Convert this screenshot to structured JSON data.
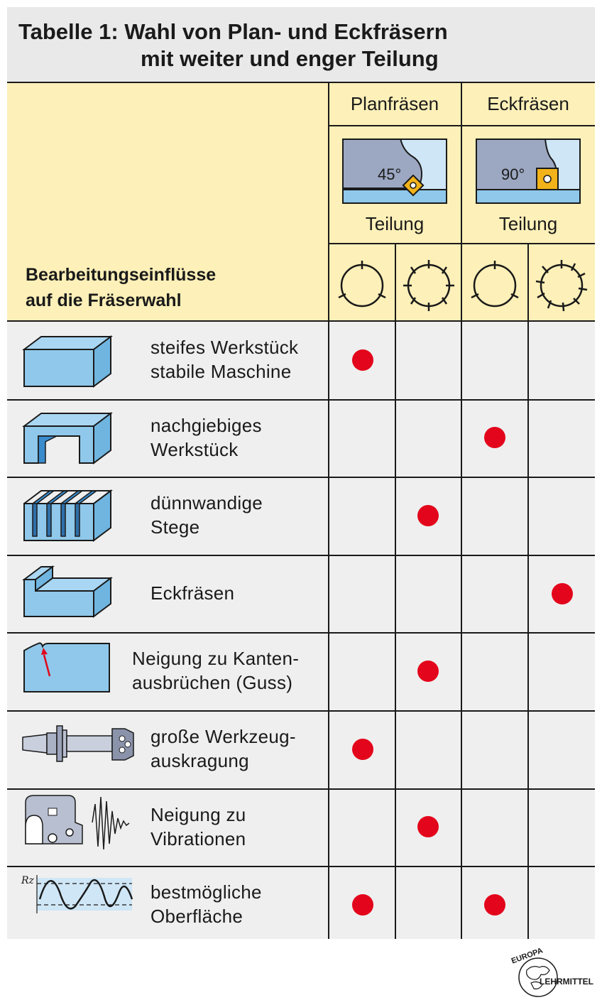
{
  "title": {
    "line1": "Tabelle 1:  Wahl von Plan- und Eckfräsern",
    "line2": "mit weiter und enger Teilung"
  },
  "header": {
    "left_line1": "Bearbeitungseinflüsse",
    "left_line2": "auf die Fräserwahl",
    "groups": [
      {
        "label": "Planfräsen",
        "angle": "45°",
        "teilung": "Teilung"
      },
      {
        "label": "Eckfräsen",
        "angle": "90°",
        "teilung": "Teilung"
      }
    ],
    "pitch_icons": [
      "wide-pitch-icon",
      "close-pitch-icon",
      "wide-pitch-icon",
      "close-pitch-icon"
    ]
  },
  "rows": [
    {
      "line1": "steifes Werkstück",
      "line2": "stabile Maschine",
      "icon": "rigid-block-icon",
      "marks": [
        true,
        false,
        false,
        false
      ]
    },
    {
      "line1": "nachgiebiges",
      "line2": "Werkstück",
      "icon": "flexible-workpiece-icon",
      "marks": [
        false,
        false,
        true,
        false
      ]
    },
    {
      "line1": "dünnwandige",
      "line2": "Stege",
      "icon": "thin-walls-icon",
      "marks": [
        false,
        true,
        false,
        false
      ]
    },
    {
      "line1": "Eckfräsen",
      "line2": "",
      "icon": "shoulder-icon",
      "marks": [
        false,
        false,
        false,
        true
      ]
    },
    {
      "line1": "Neigung zu Kanten-",
      "line2": "ausbrüchen (Guss)",
      "icon": "edge-breakout-icon",
      "marks": [
        false,
        true,
        false,
        false
      ]
    },
    {
      "line1": "große Werkzeug-",
      "line2": "auskragung",
      "icon": "tool-overhang-icon",
      "marks": [
        true,
        false,
        false,
        false
      ]
    },
    {
      "line1": "Neigung zu",
      "line2": "Vibrationen",
      "icon": "vibration-icon",
      "marks": [
        false,
        true,
        false,
        false
      ]
    },
    {
      "line1": "bestmögliche",
      "line2": "Oberfläche",
      "icon": "surface-roughness-icon",
      "marks": [
        true,
        false,
        true,
        false
      ]
    }
  ],
  "surface_icon_label": "Rz",
  "logo": {
    "top": "EUROPA",
    "bottom": "LEHRMITTEL"
  },
  "colors": {
    "header": "#fdf0b8",
    "body": "#efefef",
    "dot": "#e3051b",
    "workpiece": "#8fc8ea"
  }
}
